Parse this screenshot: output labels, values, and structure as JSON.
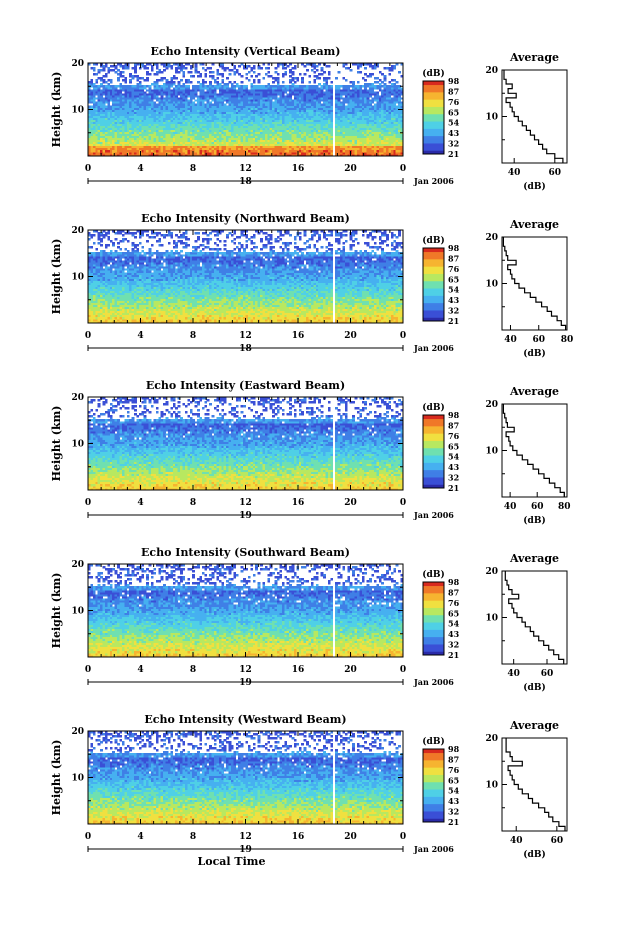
{
  "colors": {
    "colormap": [
      "#2a2aa8",
      "#3a4fd6",
      "#3f7fe6",
      "#46b0f0",
      "#4fd0e6",
      "#6fe0b0",
      "#b8e860",
      "#f0e040",
      "#f6b430",
      "#f07828",
      "#d82a1e"
    ],
    "gap": "#ffffff",
    "line": "#000000"
  },
  "chart_data": [
    {
      "type": "heatmap",
      "title": "Echo Intensity (Vertical Beam)",
      "ylabel": "Height (km)",
      "x_ticks": [
        "0",
        "4",
        "8",
        "12",
        "16",
        "20",
        "0"
      ],
      "y_ticks": [
        "10",
        "20"
      ],
      "ylim": [
        0,
        20
      ],
      "xlim": [
        0,
        24
      ],
      "date_label": "18",
      "month_label": "Jan 2006",
      "colorbar": {
        "unit": "(dB)",
        "labels": [
          "98",
          "87",
          "76",
          "65",
          "54",
          "43",
          "32",
          "21"
        ],
        "range": [
          21,
          98
        ]
      },
      "profile": {
        "title": "Average",
        "xlabel": "(dB)",
        "x_ticks": [
          "40",
          "60"
        ],
        "xlim": [
          34,
          66
        ],
        "y_ticks": [
          "10",
          "20"
        ],
        "heights": [
          1,
          2,
          3,
          4,
          5,
          6,
          7,
          8,
          9,
          10,
          11,
          12,
          13,
          14,
          15,
          16,
          17,
          18,
          19,
          20
        ],
        "values": [
          64,
          60,
          56,
          54,
          52,
          50,
          48,
          46,
          44,
          42,
          40,
          39,
          38,
          36,
          41,
          37,
          39,
          36,
          35,
          35
        ]
      }
    },
    {
      "type": "heatmap",
      "title": "Echo Intensity (Northward Beam)",
      "ylabel": "Height (km)",
      "x_ticks": [
        "0",
        "4",
        "8",
        "12",
        "16",
        "20",
        "0"
      ],
      "y_ticks": [
        "10",
        "20"
      ],
      "ylim": [
        0,
        20
      ],
      "xlim": [
        0,
        24
      ],
      "date_label": "18",
      "month_label": "Jan 2006",
      "colorbar": {
        "unit": "(dB)",
        "labels": [
          "98",
          "87",
          "76",
          "65",
          "54",
          "43",
          "32",
          "21"
        ],
        "range": [
          21,
          98
        ]
      },
      "profile": {
        "title": "Average",
        "xlabel": "(dB)",
        "x_ticks": [
          "40",
          "60",
          "80"
        ],
        "xlim": [
          34,
          80
        ],
        "y_ticks": [
          "10",
          "20"
        ],
        "heights": [
          1,
          2,
          3,
          4,
          5,
          6,
          7,
          8,
          9,
          10,
          11,
          12,
          13,
          14,
          15,
          16,
          17,
          18,
          19,
          20
        ],
        "values": [
          79,
          76,
          73,
          69,
          66,
          62,
          58,
          54,
          50,
          46,
          43,
          41,
          40,
          38,
          44,
          38,
          37,
          36,
          35,
          35
        ]
      }
    },
    {
      "type": "heatmap",
      "title": "Echo Intensity (Eastward Beam)",
      "ylabel": "Height (km)",
      "x_ticks": [
        "0",
        "4",
        "8",
        "12",
        "16",
        "20",
        "0"
      ],
      "y_ticks": [
        "10",
        "20"
      ],
      "ylim": [
        0,
        20
      ],
      "xlim": [
        0,
        24
      ],
      "date_label": "19",
      "month_label": "Jan 2006",
      "colorbar": {
        "unit": "(dB)",
        "labels": [
          "98",
          "87",
          "76",
          "65",
          "54",
          "43",
          "32",
          "21"
        ],
        "range": [
          21,
          98
        ]
      },
      "profile": {
        "title": "Average",
        "xlabel": "(dB)",
        "x_ticks": [
          "40",
          "60",
          "80"
        ],
        "xlim": [
          34,
          82
        ],
        "y_ticks": [
          "10",
          "20"
        ],
        "heights": [
          1,
          2,
          3,
          4,
          5,
          6,
          7,
          8,
          9,
          10,
          11,
          12,
          13,
          14,
          15,
          16,
          17,
          18,
          19,
          20
        ],
        "values": [
          80,
          77,
          73,
          69,
          65,
          61,
          57,
          53,
          49,
          45,
          42,
          40,
          39,
          37,
          43,
          38,
          37,
          36,
          35,
          35
        ]
      }
    },
    {
      "type": "heatmap",
      "title": "Echo Intensity (Southward Beam)",
      "ylabel": "Height (km)",
      "x_ticks": [
        "0",
        "4",
        "8",
        "12",
        "16",
        "20",
        "0"
      ],
      "y_ticks": [
        "10",
        "20"
      ],
      "ylim": [
        0,
        20
      ],
      "xlim": [
        0,
        24
      ],
      "date_label": "19",
      "month_label": "Jan 2006",
      "colorbar": {
        "unit": "(dB)",
        "labels": [
          "98",
          "87",
          "76",
          "65",
          "54",
          "43",
          "32",
          "21"
        ],
        "range": [
          21,
          98
        ]
      },
      "profile": {
        "title": "Average",
        "xlabel": "(dB)",
        "x_ticks": [
          "40",
          "60"
        ],
        "xlim": [
          33,
          72
        ],
        "y_ticks": [
          "10",
          "20"
        ],
        "heights": [
          1,
          2,
          3,
          4,
          5,
          6,
          7,
          8,
          9,
          10,
          11,
          12,
          13,
          14,
          15,
          16,
          17,
          18,
          19,
          20
        ],
        "values": [
          70,
          67,
          64,
          61,
          58,
          55,
          52,
          50,
          47,
          45,
          42,
          40,
          39,
          37,
          43,
          39,
          37,
          36,
          35,
          35
        ]
      }
    },
    {
      "type": "heatmap",
      "title": "Echo Intensity (Westward Beam)",
      "ylabel": "Height (km)",
      "x_ticks": [
        "0",
        "4",
        "8",
        "12",
        "16",
        "20",
        "0"
      ],
      "y_ticks": [
        "10",
        "20"
      ],
      "ylim": [
        0,
        20
      ],
      "xlim": [
        0,
        24
      ],
      "date_label": "19",
      "month_label": "Jan 2006",
      "xlabel": "Local Time",
      "colorbar": {
        "unit": "(dB)",
        "labels": [
          "98",
          "87",
          "76",
          "65",
          "54",
          "43",
          "32",
          "21"
        ],
        "range": [
          21,
          98
        ]
      },
      "profile": {
        "title": "Average",
        "xlabel": "(dB)",
        "x_ticks": [
          "40",
          "60"
        ],
        "xlim": [
          33,
          65
        ],
        "y_ticks": [
          "10",
          "20"
        ],
        "heights": [
          1,
          2,
          3,
          4,
          5,
          6,
          7,
          8,
          9,
          10,
          11,
          12,
          13,
          14,
          15,
          16,
          17,
          18,
          19,
          20
        ],
        "values": [
          64,
          61,
          58,
          56,
          54,
          51,
          48,
          46,
          43,
          41,
          39,
          38,
          37,
          36,
          43,
          38,
          37,
          35,
          35,
          35
        ]
      }
    }
  ]
}
